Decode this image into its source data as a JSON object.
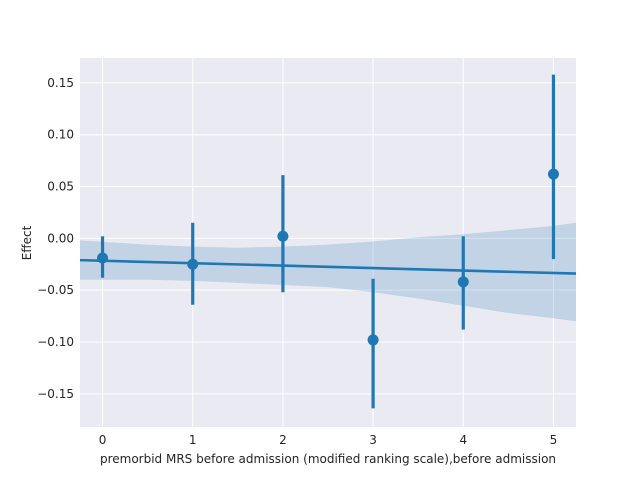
{
  "chart_data": {
    "type": "scatter",
    "xlabel": "premorbid MRS before admission  (modified ranking scale),before admission",
    "ylabel": "Effect",
    "xlim": [
      -0.25,
      5.25
    ],
    "ylim": [
      -0.182,
      0.174
    ],
    "grid": true,
    "x_ticks": [
      "0",
      "1",
      "2",
      "3",
      "4",
      "5"
    ],
    "y_ticks": [
      "0.15",
      "0.10",
      "0.05",
      "0.00",
      "−0.05",
      "−0.10",
      "−0.15"
    ],
    "y_tick_values": [
      0.15,
      0.1,
      0.05,
      0.0,
      -0.05,
      -0.1,
      -0.15
    ],
    "points": [
      {
        "x": 0,
        "y": -0.019,
        "lo": -0.038,
        "hi": 0.002
      },
      {
        "x": 1,
        "y": -0.025,
        "lo": -0.064,
        "hi": 0.015
      },
      {
        "x": 2,
        "y": 0.002,
        "lo": -0.052,
        "hi": 0.061
      },
      {
        "x": 3,
        "y": -0.098,
        "lo": -0.164,
        "hi": -0.039
      },
      {
        "x": 4,
        "y": -0.042,
        "lo": -0.088,
        "hi": 0.002
      },
      {
        "x": 5,
        "y": 0.062,
        "lo": -0.02,
        "hi": 0.158
      }
    ],
    "regression": {
      "x": [
        -0.25,
        5.25
      ],
      "y": [
        -0.021,
        -0.034
      ]
    },
    "confidence_band": {
      "x": [
        -0.25,
        0.5,
        1.0,
        1.5,
        2.0,
        2.5,
        3.0,
        3.5,
        4.0,
        4.5,
        5.0,
        5.25
      ],
      "upper": [
        -0.002,
        -0.006,
        -0.008,
        -0.009,
        -0.008,
        -0.006,
        -0.003,
        0.001,
        0.004,
        0.008,
        0.012,
        0.015
      ],
      "lower": [
        -0.04,
        -0.04,
        -0.041,
        -0.043,
        -0.045,
        -0.047,
        -0.052,
        -0.058,
        -0.065,
        -0.072,
        -0.077,
        -0.08
      ]
    },
    "colors": {
      "series": "#1f77b4",
      "band": "#1f77b4",
      "plot_background": "#eaeaf2",
      "grid": "#ffffff"
    }
  }
}
